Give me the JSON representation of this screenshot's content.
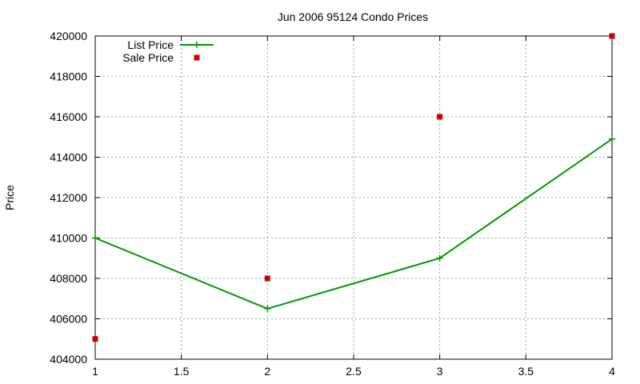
{
  "chart_data": {
    "type": "line",
    "title": "Jun 2006 95124 Condo Prices",
    "xlabel": "",
    "ylabel": "Price",
    "xlim": [
      1,
      4
    ],
    "ylim": [
      404000,
      420000
    ],
    "xticks": [
      "1",
      "1.5",
      "2",
      "2.5",
      "3",
      "3.5",
      "4"
    ],
    "xtick_values": [
      1,
      1.5,
      2,
      2.5,
      3,
      3.5,
      4
    ],
    "yticks": [
      "404000",
      "406000",
      "408000",
      "410000",
      "412000",
      "414000",
      "416000",
      "418000",
      "420000"
    ],
    "ytick_values": [
      404000,
      406000,
      408000,
      410000,
      412000,
      414000,
      416000,
      418000,
      420000
    ],
    "grid": true,
    "legend_position": "top-left",
    "series": [
      {
        "name": "List Price",
        "style": "linespoints",
        "marker": "plus",
        "color": "#009900",
        "x": [
          1,
          2,
          3,
          4
        ],
        "y": [
          410000,
          406500,
          409000,
          414900
        ]
      },
      {
        "name": "Sale Price",
        "style": "points",
        "marker": "square",
        "color": "#cc0000",
        "x": [
          1,
          2,
          3,
          4
        ],
        "y": [
          405000,
          408000,
          416000,
          420000
        ]
      }
    ]
  }
}
